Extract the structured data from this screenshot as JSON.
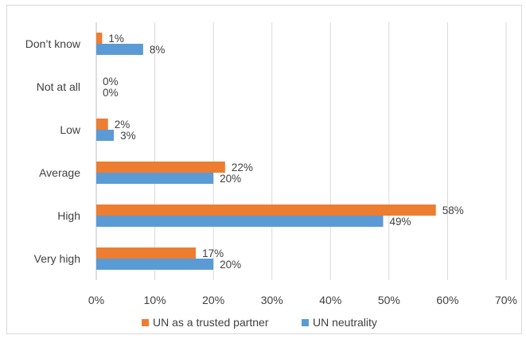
{
  "chart_data": {
    "type": "bar",
    "orientation": "horizontal",
    "categories": [
      "Don’t know",
      "Not at all",
      "Low",
      "Average",
      "High",
      "Very high"
    ],
    "series": [
      {
        "name": "UN as a trusted partner",
        "color": "#ED7D31",
        "values": [
          1,
          0,
          2,
          22,
          58,
          17
        ]
      },
      {
        "name": "UN neutrality",
        "color": "#5B9BD5",
        "values": [
          8,
          0,
          3,
          20,
          49,
          20
        ]
      }
    ],
    "xlim": [
      0,
      70
    ],
    "xticks": [
      0,
      10,
      20,
      30,
      40,
      50,
      60,
      70
    ],
    "tick_suffix": "%",
    "data_label_suffix": "%",
    "grid": "vertical",
    "legend_position": "bottom",
    "title": "",
    "xlabel": "",
    "ylabel": ""
  }
}
